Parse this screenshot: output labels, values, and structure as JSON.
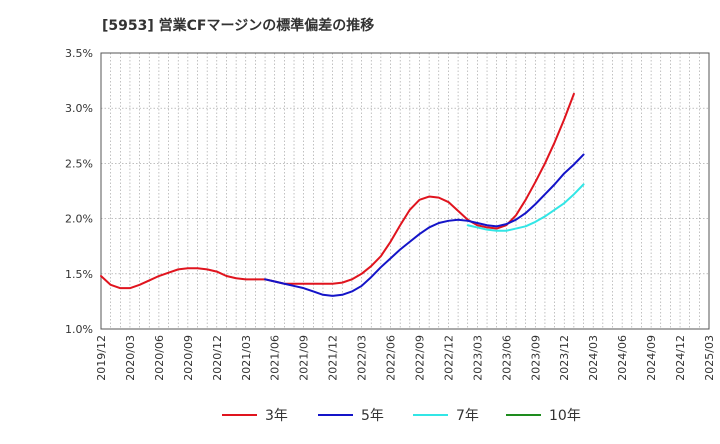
{
  "chart_data": {
    "type": "line",
    "title": "[5953]  営業CFマージンの標準偏差の推移",
    "xlabel": "",
    "ylabel": "",
    "ylim": [
      1.0,
      3.5
    ],
    "y_ticks": [
      "3.5%",
      "3.0%",
      "2.5%",
      "2.0%",
      "1.5%",
      "1.0%"
    ],
    "y_tick_values": [
      3.5,
      3.0,
      2.5,
      2.0,
      1.5,
      1.0
    ],
    "x_tick_labels": [
      "2019/12",
      "2020/03",
      "2020/06",
      "2020/09",
      "2020/12",
      "2021/03",
      "2021/06",
      "2021/09",
      "2021/12",
      "2022/03",
      "2022/06",
      "2022/09",
      "2022/12",
      "2023/03",
      "2023/06",
      "2023/09",
      "2023/12",
      "2024/03",
      "2024/06",
      "2024/09",
      "2024/12",
      "2025/03"
    ],
    "grid": true,
    "legend_position": "bottom",
    "series": [
      {
        "name": "3年",
        "color": "#e0141e",
        "values": [
          1.48,
          1.4,
          1.37,
          1.37,
          1.4,
          1.44,
          1.48,
          1.51,
          1.54,
          1.55,
          1.55,
          1.54,
          1.52,
          1.48,
          1.46,
          1.45,
          1.45,
          1.45,
          1.43,
          1.41,
          1.41,
          1.41,
          1.41,
          1.41,
          1.41,
          1.42,
          1.45,
          1.5,
          1.57,
          1.66,
          1.79,
          1.94,
          2.08,
          2.17,
          2.2,
          2.19,
          2.15,
          2.07,
          1.99,
          1.94,
          1.92,
          1.91,
          1.94,
          2.03,
          2.17,
          2.33,
          2.5,
          2.69,
          2.9,
          3.13
        ]
      },
      {
        "name": "5年",
        "color": "#1414c8",
        "values": [
          null,
          null,
          null,
          null,
          null,
          null,
          null,
          null,
          null,
          null,
          null,
          null,
          null,
          null,
          null,
          null,
          null,
          1.45,
          1.43,
          1.41,
          1.39,
          1.37,
          1.34,
          1.31,
          1.3,
          1.31,
          1.34,
          1.39,
          1.47,
          1.56,
          1.64,
          1.72,
          1.79,
          1.86,
          1.92,
          1.96,
          1.98,
          1.99,
          1.98,
          1.96,
          1.94,
          1.93,
          1.95,
          1.99,
          2.05,
          2.13,
          2.22,
          2.31,
          2.41,
          2.49,
          2.58
        ]
      },
      {
        "name": "7年",
        "color": "#32e6e6",
        "values": [
          null,
          null,
          null,
          null,
          null,
          null,
          null,
          null,
          null,
          null,
          null,
          null,
          null,
          null,
          null,
          null,
          null,
          null,
          null,
          null,
          null,
          null,
          null,
          null,
          null,
          null,
          null,
          null,
          null,
          null,
          null,
          null,
          null,
          null,
          null,
          null,
          null,
          null,
          1.94,
          1.92,
          1.9,
          1.89,
          1.89,
          1.91,
          1.93,
          1.97,
          2.02,
          2.08,
          2.14,
          2.22,
          2.31
        ]
      },
      {
        "name": "10年",
        "color": "#1e8c1e",
        "values": []
      }
    ]
  }
}
